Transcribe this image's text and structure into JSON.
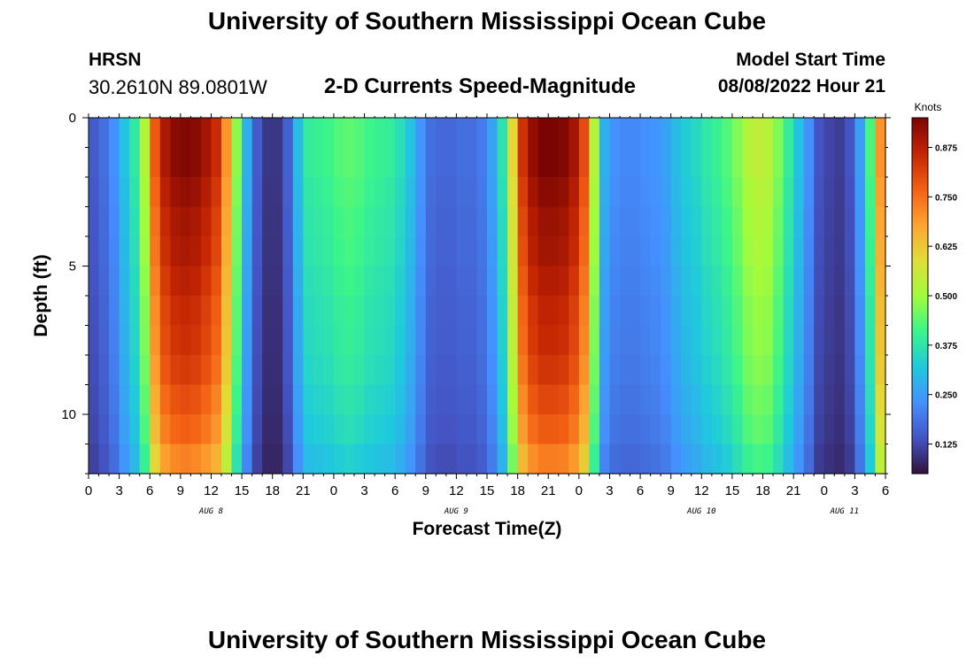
{
  "page": {
    "title": "University of Southern Mississippi Ocean Cube",
    "title_repeat": "University of Southern Mississippi Ocean Cube",
    "station_code": "HRSN",
    "station_coords": "30.2610N  89.0801W",
    "plot_title": "2-D Currents Speed-Magnitude",
    "model_start_label": "Model Start Time",
    "model_start_value": "08/08/2022 Hour 21"
  },
  "colors": {
    "scale": [
      "#30123b",
      "#4454c4",
      "#4490fe",
      "#1fc9dd",
      "#3bf58a",
      "#a2fc3c",
      "#e1dd37",
      "#fea331",
      "#f26014",
      "#c42503",
      "#7a0403"
    ]
  },
  "chart_data": {
    "type": "heatmap",
    "xlabel": "Forecast Time(Z)",
    "ylabel": "Depth (ft)",
    "x_unit": "hours since Aug 8 00Z",
    "xlim": [
      0,
      78
    ],
    "ylim": [
      0,
      12
    ],
    "y_ticks": [
      0,
      5,
      10
    ],
    "y_tick_labels": [
      "0",
      "5",
      "10"
    ],
    "x_ticks": [
      0,
      3,
      6,
      9,
      12,
      15,
      18,
      21,
      24,
      27,
      30,
      33,
      36,
      39,
      42,
      45,
      48,
      51,
      54,
      57,
      60,
      63,
      66,
      69,
      72,
      75,
      78
    ],
    "x_tick_labels": [
      "0",
      "3",
      "6",
      "9",
      "12",
      "15",
      "18",
      "21",
      "0",
      "3",
      "6",
      "9",
      "12",
      "15",
      "18",
      "21",
      "0",
      "3",
      "6",
      "9",
      "12",
      "15",
      "18",
      "21",
      "0",
      "3",
      "6"
    ],
    "date_labels": [
      {
        "text": "AUG 8",
        "x": 12
      },
      {
        "text": "AUG 9",
        "x": 36
      },
      {
        "text": "AUG 10",
        "x": 60
      },
      {
        "text": "AUG 11",
        "x": 74
      }
    ],
    "colorbar": {
      "label": "Knots",
      "range": [
        0.05,
        0.95
      ],
      "ticks": [
        0.125,
        0.25,
        0.375,
        0.5,
        0.625,
        0.75,
        0.875
      ],
      "tick_labels": [
        "0.125",
        "0.250",
        "0.375",
        "0.500",
        "0.625",
        "0.750",
        "0.875"
      ]
    },
    "depths": [
      0,
      1,
      2,
      3,
      4,
      5,
      6,
      7,
      8,
      9,
      10,
      11
    ],
    "time_steps": [
      0,
      1,
      2,
      3,
      4,
      5,
      6,
      7,
      8,
      9,
      10,
      11,
      12,
      13,
      14,
      15,
      16,
      17,
      18,
      19,
      20,
      21,
      22,
      23,
      24,
      25,
      26,
      27,
      28,
      29,
      30,
      31,
      32,
      33,
      34,
      35,
      36,
      37,
      38,
      39,
      40,
      41,
      42,
      43,
      44,
      45,
      46,
      47,
      48,
      49,
      50,
      51,
      52,
      53,
      54,
      55,
      56,
      57,
      58,
      59,
      60,
      61,
      62,
      63,
      64,
      65,
      66,
      67,
      68,
      69,
      70,
      71,
      72,
      73,
      74,
      75,
      76,
      77
    ],
    "surface_speed": [
      0.15,
      0.18,
      0.23,
      0.31,
      0.38,
      0.52,
      0.78,
      0.89,
      0.93,
      0.94,
      0.93,
      0.9,
      0.85,
      0.7,
      0.48,
      0.28,
      0.15,
      0.1,
      0.1,
      0.16,
      0.3,
      0.39,
      0.4,
      0.41,
      0.43,
      0.44,
      0.43,
      0.41,
      0.4,
      0.39,
      0.36,
      0.31,
      0.24,
      0.18,
      0.17,
      0.17,
      0.18,
      0.18,
      0.2,
      0.26,
      0.37,
      0.6,
      0.84,
      0.92,
      0.95,
      0.95,
      0.94,
      0.9,
      0.8,
      0.52,
      0.28,
      0.23,
      0.22,
      0.22,
      0.23,
      0.24,
      0.26,
      0.3,
      0.33,
      0.35,
      0.38,
      0.4,
      0.43,
      0.47,
      0.52,
      0.54,
      0.53,
      0.47,
      0.39,
      0.31,
      0.23,
      0.14,
      0.12,
      0.11,
      0.14,
      0.25,
      0.42,
      0.7
    ],
    "depth_factor": [
      1.0,
      1.0,
      0.98,
      0.96,
      0.95,
      0.93,
      0.91,
      0.9,
      0.88,
      0.85,
      0.82,
      0.77
    ]
  }
}
